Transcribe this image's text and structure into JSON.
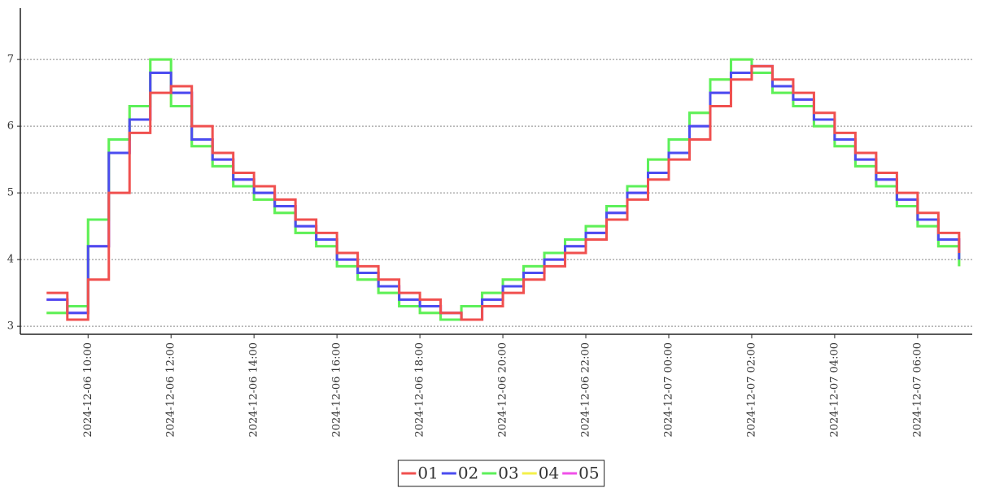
{
  "chart_data": {
    "type": "line",
    "drawstyle": "steps-post",
    "grid": true,
    "legend": "lower center",
    "x": [
      "2024-12-06 09:00",
      "2024-12-06 09:30",
      "2024-12-06 10:00",
      "2024-12-06 10:30",
      "2024-12-06 11:00",
      "2024-12-06 11:30",
      "2024-12-06 12:00",
      "2024-12-06 12:30",
      "2024-12-06 13:00",
      "2024-12-06 13:30",
      "2024-12-06 14:00",
      "2024-12-06 14:30",
      "2024-12-06 15:00",
      "2024-12-06 15:30",
      "2024-12-06 16:00",
      "2024-12-06 16:30",
      "2024-12-06 17:00",
      "2024-12-06 17:30",
      "2024-12-06 18:00",
      "2024-12-06 18:30",
      "2024-12-06 19:00",
      "2024-12-06 19:30",
      "2024-12-06 20:00",
      "2024-12-06 20:30",
      "2024-12-06 21:00",
      "2024-12-06 21:30",
      "2024-12-06 22:00",
      "2024-12-06 22:30",
      "2024-12-06 23:00",
      "2024-12-06 23:30",
      "2024-12-07 00:00",
      "2024-12-07 00:30",
      "2024-12-07 01:00",
      "2024-12-07 01:30",
      "2024-12-07 02:00",
      "2024-12-07 02:30",
      "2024-12-07 03:00",
      "2024-12-07 03:30",
      "2024-12-07 04:00",
      "2024-12-07 04:30",
      "2024-12-07 05:00",
      "2024-12-07 05:30",
      "2024-12-07 06:00",
      "2024-12-07 06:30",
      "2024-12-07 07:00"
    ],
    "series": [
      {
        "name": "01",
        "color": "#f0504f",
        "values": [
          3.5,
          3.1,
          3.7,
          5.0,
          5.9,
          6.5,
          6.6,
          6.0,
          5.6,
          5.3,
          5.1,
          4.9,
          4.6,
          4.4,
          4.1,
          3.9,
          3.7,
          3.5,
          3.4,
          3.2,
          3.1,
          3.3,
          3.5,
          3.7,
          3.9,
          4.1,
          4.3,
          4.6,
          4.9,
          5.2,
          5.5,
          5.8,
          6.3,
          6.7,
          6.9,
          6.7,
          6.5,
          6.2,
          5.9,
          5.6,
          5.3,
          5.0,
          4.7,
          4.4,
          4.1
        ]
      },
      {
        "name": "02",
        "color": "#4b4cf0",
        "values": [
          3.4,
          3.2,
          4.2,
          5.6,
          6.1,
          6.8,
          6.5,
          5.8,
          5.5,
          5.2,
          5.0,
          4.8,
          4.5,
          4.3,
          4.0,
          3.8,
          3.6,
          3.4,
          3.3,
          3.2,
          3.1,
          3.4,
          3.6,
          3.8,
          4.0,
          4.2,
          4.4,
          4.7,
          5.0,
          5.3,
          5.6,
          6.0,
          6.5,
          6.8,
          6.9,
          6.6,
          6.4,
          6.1,
          5.8,
          5.5,
          5.2,
          4.9,
          4.6,
          4.3,
          4.0
        ]
      },
      {
        "name": "03",
        "color": "#5cf05a",
        "values": [
          3.2,
          3.3,
          4.6,
          5.8,
          6.3,
          7.0,
          6.3,
          5.7,
          5.4,
          5.1,
          4.9,
          4.7,
          4.4,
          4.2,
          3.9,
          3.7,
          3.5,
          3.3,
          3.2,
          3.1,
          3.3,
          3.5,
          3.7,
          3.9,
          4.1,
          4.3,
          4.5,
          4.8,
          5.1,
          5.5,
          5.8,
          6.2,
          6.7,
          7.0,
          6.8,
          6.5,
          6.3,
          6.0,
          5.7,
          5.4,
          5.1,
          4.8,
          4.5,
          4.2,
          3.9
        ]
      },
      {
        "name": "04",
        "color": "#f4f04a",
        "values": [
          3.2,
          3.3,
          4.6,
          5.8,
          6.3,
          7.0,
          6.3,
          5.7,
          5.4,
          5.1,
          4.9,
          4.7,
          4.4,
          4.2,
          3.9,
          3.7,
          3.5,
          3.3,
          3.2,
          3.1,
          3.3,
          3.5,
          3.7,
          3.9,
          4.1,
          4.3,
          4.5,
          4.8,
          5.1,
          5.5,
          5.8,
          6.2,
          6.7,
          7.0,
          6.8,
          6.5,
          6.3,
          6.0,
          5.7,
          5.4,
          5.1,
          4.8,
          4.5,
          4.2,
          3.9
        ]
      },
      {
        "name": "05",
        "color": "#f050e8",
        "values": [
          3.4,
          3.2,
          4.2,
          5.6,
          6.1,
          6.8,
          6.5,
          5.8,
          5.5,
          5.2,
          5.0,
          4.8,
          4.5,
          4.3,
          4.0,
          3.8,
          3.6,
          3.4,
          3.3,
          3.2,
          3.1,
          3.4,
          3.6,
          3.8,
          4.0,
          4.2,
          4.4,
          4.7,
          5.0,
          5.3,
          5.6,
          6.0,
          6.5,
          6.8,
          6.9,
          6.6,
          6.4,
          6.1,
          5.8,
          5.5,
          5.2,
          4.9,
          4.6,
          4.3,
          4.0
        ]
      }
    ],
    "xlim": [
      "2024-12-06 08:22",
      "2024-12-07 07:19"
    ],
    "xticks": [
      "2024-12-06 10:00",
      "2024-12-06 12:00",
      "2024-12-06 14:00",
      "2024-12-06 16:00",
      "2024-12-06 18:00",
      "2024-12-06 20:00",
      "2024-12-06 22:00",
      "2024-12-07 00:00",
      "2024-12-07 02:00",
      "2024-12-07 04:00",
      "2024-12-07 06:00"
    ],
    "ylim": [
      2.88,
      7.77
    ],
    "yticks": [
      3,
      4,
      5,
      6,
      7
    ]
  }
}
